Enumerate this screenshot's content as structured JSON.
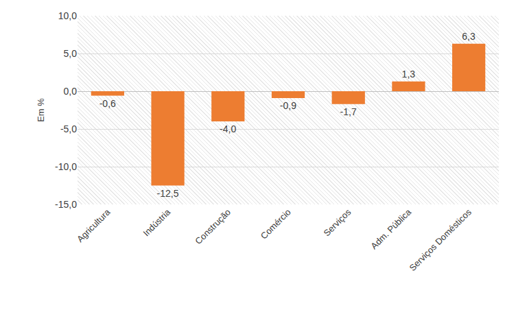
{
  "chart_data": {
    "type": "bar",
    "y_label": "Em %",
    "categories": [
      "Agricultura",
      "Indústria",
      "Construção",
      "Comércio",
      "Serviços",
      "Adm. Pública",
      "Serviços Domésticos"
    ],
    "values": [
      -0.6,
      -12.5,
      -4.0,
      -0.9,
      -1.7,
      1.3,
      6.3
    ],
    "value_labels": [
      "-0,6",
      "-12,5",
      "-4,0",
      "-0,9",
      "-1,7",
      "1,3",
      "6,3"
    ],
    "color": "#ed7d31",
    "ylim": [
      -15,
      10
    ],
    "yticks": [
      {
        "value": -15,
        "label": "-15,0"
      },
      {
        "value": -10,
        "label": "-10,0"
      },
      {
        "value": -5,
        "label": "-5,0"
      },
      {
        "value": 0,
        "label": "0,0"
      },
      {
        "value": 5,
        "label": "5,0"
      },
      {
        "value": 10,
        "label": "10,0"
      }
    ],
    "grid": true,
    "data_labels": true
  }
}
